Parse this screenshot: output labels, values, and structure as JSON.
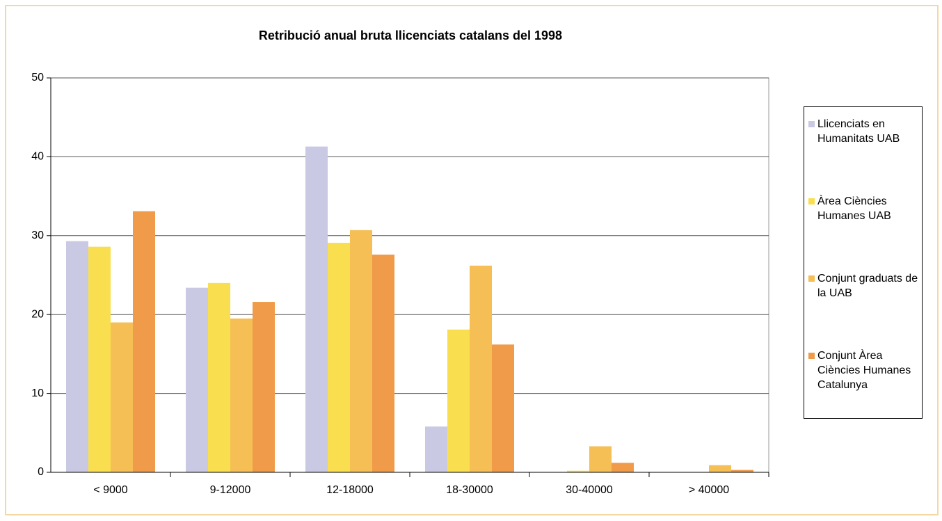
{
  "chart_data": {
    "type": "bar",
    "title": "Retribució anual bruta llicenciats catalans del 1998",
    "categories": [
      "< 9000",
      "9-12000",
      "12-18000",
      "18-30000",
      "30-40000",
      "> 40000"
    ],
    "series": [
      {
        "name": "Llicenciats en Humanitats UAB",
        "color": "#c9c9e4",
        "values": [
          29.3,
          23.4,
          41.3,
          5.8,
          0,
          0
        ]
      },
      {
        "name": "Àrea Ciències Humanes UAB",
        "color": "#f9df4f",
        "values": [
          28.6,
          24.0,
          29.1,
          18.1,
          0.2,
          0
        ]
      },
      {
        "name": "Conjunt graduats de la UAB",
        "color": "#f5bf55",
        "values": [
          19.0,
          19.5,
          30.7,
          26.2,
          3.3,
          0.9
        ]
      },
      {
        "name": "Conjunt Àrea Ciències Humanes Catalunya",
        "color": "#f09b4a",
        "values": [
          33.1,
          21.6,
          27.6,
          16.2,
          1.2,
          0.3
        ]
      }
    ],
    "ylim": [
      0,
      50
    ],
    "yticks": [
      0,
      10,
      20,
      30,
      40,
      50
    ],
    "grid": true,
    "legend": "right"
  }
}
